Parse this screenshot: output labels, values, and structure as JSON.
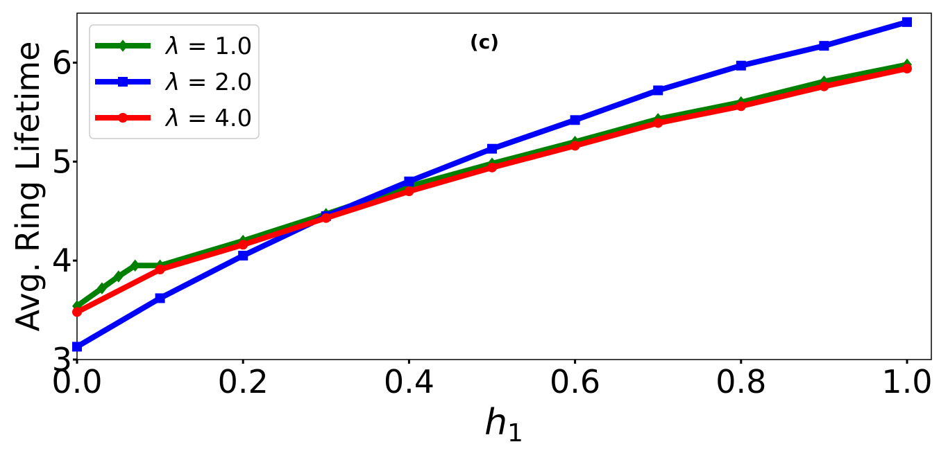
{
  "chart_data": {
    "type": "line",
    "title": "",
    "annotation": "(c)",
    "xlabel": "h",
    "xlabel_sub": "1",
    "ylabel": "Avg. Ring Lifetime",
    "xlim": [
      0.0,
      1.0
    ],
    "ylim": [
      3.0,
      6.5
    ],
    "xticks": [
      "0.0",
      "0.2",
      "0.4",
      "0.6",
      "0.8",
      "1.0"
    ],
    "yticks": [
      "3",
      "4",
      "5",
      "6"
    ],
    "grid": false,
    "legend_position": "top-left",
    "series": [
      {
        "name": "λ = 1.0",
        "legend_param": "λ",
        "legend_value": "1.0",
        "color": "#008000",
        "marker": "diamond",
        "x": [
          0.0,
          0.03,
          0.05,
          0.07,
          0.1,
          0.2,
          0.3,
          0.4,
          0.5,
          0.6,
          0.7,
          0.8,
          0.9,
          1.0
        ],
        "y": [
          3.54,
          3.72,
          3.84,
          3.95,
          3.95,
          4.2,
          4.47,
          4.75,
          4.98,
          5.2,
          5.43,
          5.6,
          5.81,
          5.98
        ]
      },
      {
        "name": "λ = 2.0",
        "legend_param": "λ",
        "legend_value": "2.0",
        "color": "#0000ff",
        "marker": "square",
        "x": [
          0.0,
          0.1,
          0.2,
          0.3,
          0.4,
          0.5,
          0.6,
          0.7,
          0.8,
          0.9,
          1.0
        ],
        "y": [
          3.13,
          3.62,
          4.05,
          4.45,
          4.8,
          5.13,
          5.42,
          5.72,
          5.97,
          6.17,
          6.41
        ]
      },
      {
        "name": "λ = 4.0",
        "legend_param": "λ",
        "legend_value": "4.0",
        "color": "#ff0000",
        "marker": "circle",
        "x": [
          0.0,
          0.1,
          0.2,
          0.3,
          0.4,
          0.5,
          0.6,
          0.7,
          0.8,
          0.9,
          1.0
        ],
        "y": [
          3.48,
          3.91,
          4.16,
          4.43,
          4.7,
          4.94,
          5.16,
          5.39,
          5.56,
          5.76,
          5.94
        ]
      }
    ]
  }
}
